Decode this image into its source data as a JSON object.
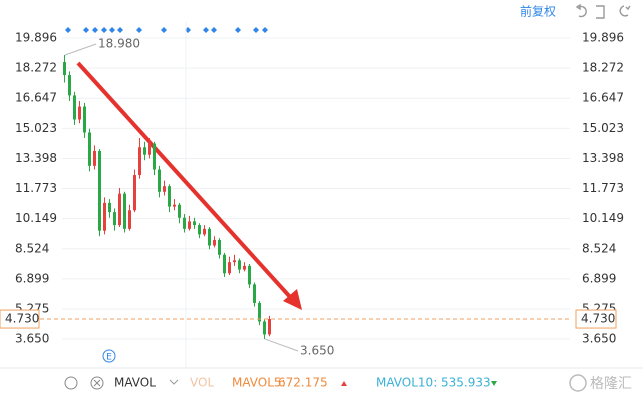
{
  "chart_data": {
    "type": "candlestick",
    "adjust_label": "前复权",
    "ylim": [
      2.25,
      20.6
    ],
    "yticks": [
      19.896,
      18.272,
      16.647,
      15.023,
      13.398,
      11.773,
      10.149,
      8.524,
      6.899,
      5.275,
      {
        "value": 3.65,
        "label": "3.650"
      }
    ],
    "grid": true,
    "up_color": "#e5413d",
    "down_color": "#2aa845",
    "last_price": {
      "value": 4.73,
      "label": "4.730"
    },
    "high_label": {
      "value": 18.98,
      "label": "18.980"
    },
    "low_label": {
      "value": 3.65,
      "label": "3.650"
    },
    "open": [
      18.6,
      17.9,
      16.8,
      15.5,
      16.2,
      14.8,
      13.0,
      13.8,
      9.5,
      11.0,
      10.5,
      9.8,
      11.5,
      9.6,
      10.6,
      12.5,
      14.0,
      13.6,
      14.2,
      12.8,
      11.6,
      11.9,
      10.8,
      10.9,
      10.2,
      9.6,
      10.0,
      9.8,
      9.3,
      9.6,
      8.7,
      9.0,
      8.2,
      7.2,
      7.8,
      7.9,
      7.4,
      7.6,
      6.6,
      5.6,
      4.6,
      3.9
    ],
    "high": [
      18.98,
      18.1,
      17.0,
      16.5,
      16.4,
      15.0,
      14.1,
      13.9,
      11.3,
      11.2,
      10.7,
      11.8,
      11.6,
      10.9,
      12.8,
      14.5,
      14.3,
      14.5,
      14.3,
      13.0,
      12.2,
      12.0,
      11.2,
      11.0,
      10.4,
      10.3,
      10.2,
      9.9,
      9.8,
      9.7,
      9.2,
      9.1,
      8.3,
      8.1,
      8.2,
      8.0,
      7.8,
      7.7,
      6.7,
      5.7,
      4.7,
      4.9
    ],
    "low": [
      17.5,
      16.5,
      15.2,
      15.3,
      14.5,
      12.7,
      12.8,
      9.2,
      9.3,
      10.2,
      9.5,
      9.7,
      9.4,
      9.5,
      10.5,
      12.3,
      13.3,
      13.4,
      12.5,
      11.3,
      11.4,
      10.5,
      10.6,
      9.9,
      9.4,
      9.5,
      9.6,
      9.1,
      9.2,
      8.5,
      8.6,
      8.0,
      7.0,
      7.1,
      7.6,
      7.2,
      7.3,
      6.4,
      5.4,
      4.4,
      3.65,
      3.8
    ],
    "close": [
      17.9,
      16.8,
      15.5,
      16.2,
      14.8,
      13.0,
      13.8,
      9.5,
      11.0,
      10.5,
      9.8,
      11.5,
      9.6,
      10.6,
      12.5,
      14.0,
      13.6,
      14.2,
      12.8,
      11.6,
      11.9,
      10.8,
      10.9,
      10.2,
      9.6,
      10.0,
      9.8,
      9.3,
      9.6,
      8.7,
      9.0,
      8.2,
      7.2,
      7.8,
      7.9,
      7.4,
      7.6,
      6.6,
      5.6,
      4.6,
      3.9,
      4.73
    ],
    "indicator": "MAVOL",
    "vol_label": "VOL",
    "mavol5_label": "MAVOL5:",
    "mavol5": 672.175,
    "mavol10_label": "MAVOL10:",
    "mavol10": 535.933,
    "watermark": "格隆汇"
  }
}
